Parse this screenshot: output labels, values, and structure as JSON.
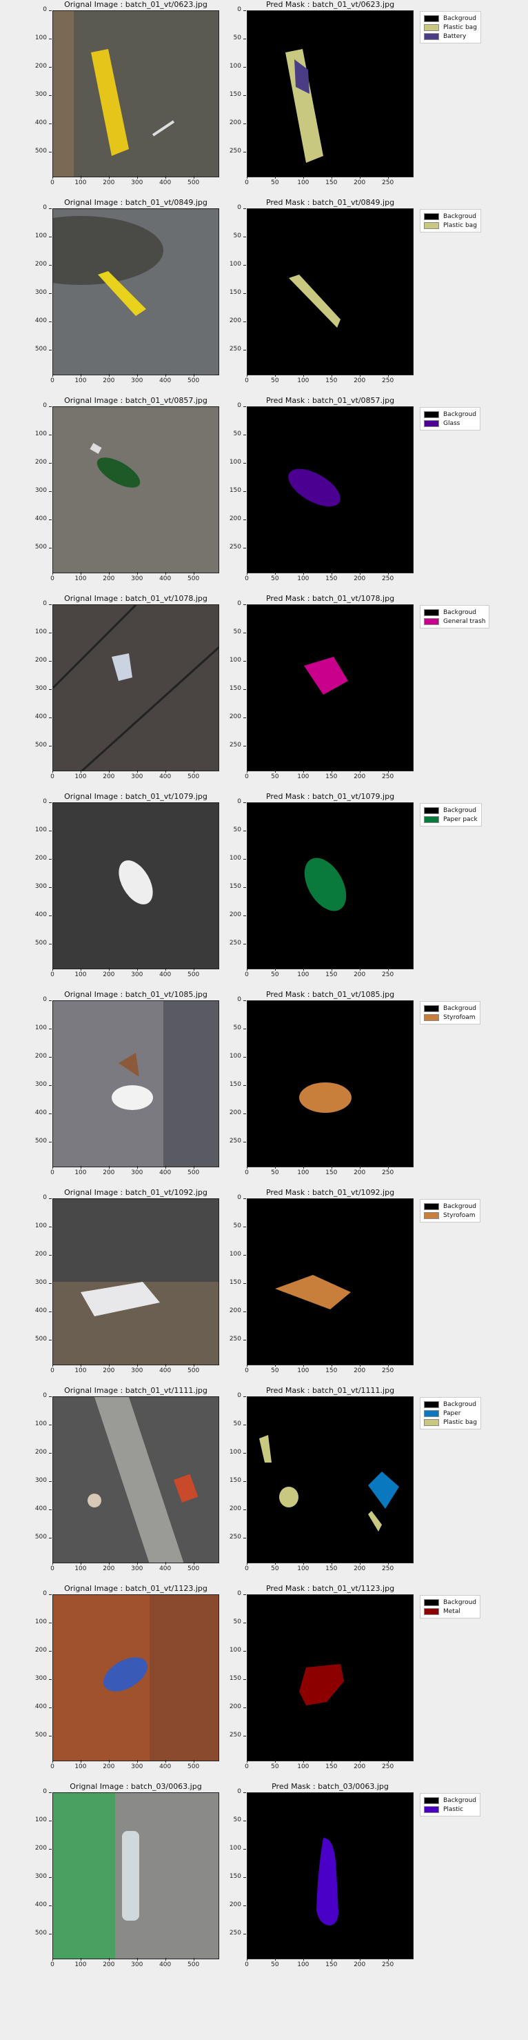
{
  "panels": [
    {
      "left_title": "Orignal Image : batch_01_vt/0623.jpg",
      "right_title": "Pred Mask : batch_01_vt/0623.jpg",
      "legend": [
        {
          "label": "Backgroud",
          "color": "#000000"
        },
        {
          "label": "Plastic bag",
          "color": "#c8c880"
        },
        {
          "label": "Battery",
          "color": "#4b3c86"
        }
      ]
    },
    {
      "left_title": "Orignal Image : batch_01_vt/0849.jpg",
      "right_title": "Pred Mask : batch_01_vt/0849.jpg",
      "legend": [
        {
          "label": "Backgroud",
          "color": "#000000"
        },
        {
          "label": "Plastic bag",
          "color": "#c8c880"
        }
      ]
    },
    {
      "left_title": "Orignal Image : batch_01_vt/0857.jpg",
      "right_title": "Pred Mask : batch_01_vt/0857.jpg",
      "legend": [
        {
          "label": "Backgroud",
          "color": "#000000"
        },
        {
          "label": "Glass",
          "color": "#4b0092"
        }
      ]
    },
    {
      "left_title": "Orignal Image : batch_01_vt/1078.jpg",
      "right_title": "Pred Mask : batch_01_vt/1078.jpg",
      "legend": [
        {
          "label": "Backgroud",
          "color": "#000000"
        },
        {
          "label": "General trash",
          "color": "#c8008c"
        }
      ]
    },
    {
      "left_title": "Orignal Image : batch_01_vt/1079.jpg",
      "right_title": "Pred Mask : batch_01_vt/1079.jpg",
      "legend": [
        {
          "label": "Backgroud",
          "color": "#000000"
        },
        {
          "label": "Paper pack",
          "color": "#0a7a3c"
        }
      ]
    },
    {
      "left_title": "Orignal Image : batch_01_vt/1085.jpg",
      "right_title": "Pred Mask : batch_01_vt/1085.jpg",
      "legend": [
        {
          "label": "Backgroud",
          "color": "#000000"
        },
        {
          "label": "Styrofoam",
          "color": "#c87f3c"
        }
      ]
    },
    {
      "left_title": "Orignal Image : batch_01_vt/1092.jpg",
      "right_title": "Pred Mask : batch_01_vt/1092.jpg",
      "legend": [
        {
          "label": "Backgroud",
          "color": "#000000"
        },
        {
          "label": "Styrofoam",
          "color": "#c87f3c"
        }
      ]
    },
    {
      "left_title": "Orignal Image : batch_01_vt/1111.jpg",
      "right_title": "Pred Mask : batch_01_vt/1111.jpg",
      "legend": [
        {
          "label": "Backgroud",
          "color": "#000000"
        },
        {
          "label": "Paper",
          "color": "#0a78be"
        },
        {
          "label": "Plastic bag",
          "color": "#c8c880"
        }
      ]
    },
    {
      "left_title": "Orignal Image : batch_01_vt/1123.jpg",
      "right_title": "Pred Mask : batch_01_vt/1123.jpg",
      "legend": [
        {
          "label": "Backgroud",
          "color": "#000000"
        },
        {
          "label": "Metal",
          "color": "#8c0000"
        }
      ]
    },
    {
      "left_title": "Orignal Image : batch_03/0063.jpg",
      "right_title": "Pred Mask : batch_03/0063.jpg",
      "legend": [
        {
          "label": "Backgroud",
          "color": "#000000"
        },
        {
          "label": "Plastic",
          "color": "#4b00c8"
        }
      ]
    }
  ],
  "left_yticks": [
    "0",
    "100",
    "200",
    "300",
    "400",
    "500"
  ],
  "left_xticks": [
    "0",
    "100",
    "200",
    "300",
    "400",
    "500"
  ],
  "right_yticks": [
    "0",
    "50",
    "100",
    "150",
    "200",
    "250"
  ],
  "right_xticks": [
    "0",
    "50",
    "100",
    "150",
    "200",
    "250"
  ]
}
